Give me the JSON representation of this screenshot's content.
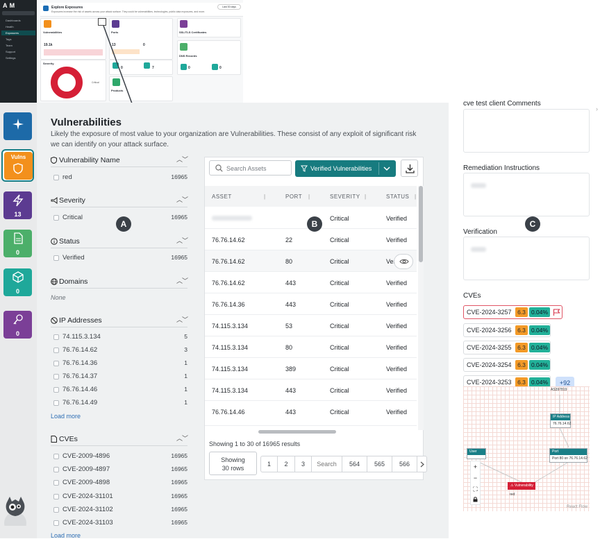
{
  "thumbnail": {
    "logo": "A M",
    "nav": [
      "Dashboards",
      "Health",
      "Exposures",
      "Tags",
      "Team",
      "Support",
      "Settings"
    ],
    "header_title": "Explore Exposures",
    "header_sub": "Exposures increase the risk of assets across your attack surface. They could be vulnerabilities, technologies, public data exposures, and more.",
    "header_btn": "Last 30 days",
    "cards": {
      "vulns": "Vulnerabilities",
      "vulns_value": "19.1k",
      "ports": "Ports",
      "ports_value": "13",
      "ports_value2": "0",
      "ssl": "SSL/TLS Certificates",
      "dns": "DNS Records",
      "dns_a": "0",
      "dns_b": "0",
      "severity": "Severity",
      "critical": "Critical",
      "products": "Products",
      "tech_a": "0",
      "tech_b": "7"
    }
  },
  "rail": {
    "vulns_label": "Vulns",
    "tiles": [
      {
        "count": "13",
        "color": "#5c3b91"
      },
      {
        "count": "0",
        "color": "#4caf6a"
      },
      {
        "count": "0",
        "color": "#1fa89a"
      },
      {
        "count": "0",
        "color": "#7b3f97"
      }
    ]
  },
  "panel": {
    "title": "Vulnerabilities",
    "description": "Likely the exposure of most value to your organization are Vulnerabilities. These consist of any exploit of significant risk we can identify on your attack surface."
  },
  "filters": {
    "vuln_name": {
      "title": "Vulnerability Name",
      "items": [
        {
          "label": "red",
          "count": "16965"
        }
      ]
    },
    "severity": {
      "title": "Severity",
      "items": [
        {
          "label": "Critical",
          "count": "16965"
        }
      ]
    },
    "status": {
      "title": "Status",
      "items": [
        {
          "label": "Verified",
          "count": "16965"
        }
      ]
    },
    "domains": {
      "title": "Domains",
      "none": "None"
    },
    "ips": {
      "title": "IP Addresses",
      "items": [
        {
          "label": "74.115.3.134",
          "count": "5"
        },
        {
          "label": "76.76.14.62",
          "count": "3"
        },
        {
          "label": "76.76.14.36",
          "count": "1"
        },
        {
          "label": "76.76.14.37",
          "count": "1"
        },
        {
          "label": "76.76.14.46",
          "count": "1"
        },
        {
          "label": "76.76.14.49",
          "count": "1"
        }
      ],
      "load_more": "Load more"
    },
    "cves": {
      "title": "CVEs",
      "items": [
        {
          "label": "CVE-2009-4896",
          "count": "16965"
        },
        {
          "label": "CVE-2009-4897",
          "count": "16965"
        },
        {
          "label": "CVE-2009-4898",
          "count": "16965"
        },
        {
          "label": "CVE-2024-31101",
          "count": "16965"
        },
        {
          "label": "CVE-2024-31102",
          "count": "16965"
        },
        {
          "label": "CVE-2024-31103",
          "count": "16965"
        }
      ],
      "load_more": "Load more"
    }
  },
  "table": {
    "search_placeholder": "Search Assets",
    "filter_label": "Verified Vulnerabilities",
    "columns": [
      "ASSET",
      "PORT",
      "SEVERITY",
      "STATUS"
    ],
    "rows": [
      {
        "asset": "",
        "port": "",
        "severity": "Critical",
        "status": "Verified"
      },
      {
        "asset": "76.76.14.62",
        "port": "22",
        "severity": "Critical",
        "status": "Verified"
      },
      {
        "asset": "76.76.14.62",
        "port": "80",
        "severity": "Critical",
        "status": "Verified"
      },
      {
        "asset": "76.76.14.62",
        "port": "443",
        "severity": "Critical",
        "status": "Verified"
      },
      {
        "asset": "76.76.14.36",
        "port": "443",
        "severity": "Critical",
        "status": "Verified"
      },
      {
        "asset": "74.115.3.134",
        "port": "53",
        "severity": "Critical",
        "status": "Verified"
      },
      {
        "asset": "74.115.3.134",
        "port": "80",
        "severity": "Critical",
        "status": "Verified"
      },
      {
        "asset": "74.115.3.134",
        "port": "389",
        "severity": "Critical",
        "status": "Verified"
      },
      {
        "asset": "74.115.3.134",
        "port": "443",
        "severity": "Critical",
        "status": "Verified"
      },
      {
        "asset": "76.76.14.46",
        "port": "443",
        "severity": "Critical",
        "status": "Verified"
      }
    ],
    "showing": "Showing 1 to 30 of 16965 results",
    "rows_select": "Showing 30 rows",
    "pages": [
      "1",
      "2",
      "3",
      "Search",
      "564",
      "565",
      "566"
    ]
  },
  "markers": {
    "a": "A",
    "b": "B",
    "c": "C"
  },
  "detail": {
    "comments_title": "cve test client Comments",
    "remediation_title": "Remediation Instructions",
    "verification_title": "Verification",
    "cves_title": "CVEs",
    "cves": [
      {
        "id": "CVE-2024-3257",
        "score": "6.3",
        "pct": "0.04%"
      },
      {
        "id": "CVE-2024-3256",
        "score": "6.3",
        "pct": "0.04%"
      },
      {
        "id": "CVE-2024-3255",
        "score": "6.3",
        "pct": "0.04%"
      },
      {
        "id": "CVE-2024-3254",
        "score": "6.3",
        "pct": "0.04%"
      },
      {
        "id": "CVE-2024-3253",
        "score": "6.3",
        "pct": "0.04%"
      }
    ],
    "more": "+92",
    "flow": {
      "asn": "AS397819",
      "ip_head": "IP Address",
      "ip_val": "76.76.14.62",
      "user_head": "User",
      "port_head": "Port",
      "port_val": "Port 80 on 76.76.14.62",
      "vuln_head": "Vulnerability",
      "vuln_val": "red",
      "credit": "React Flow"
    }
  },
  "colors": {
    "teal": "#177b7f",
    "critical_red": "#d51f36",
    "score_orange": "#f39a27",
    "pct_green": "#22b199"
  }
}
